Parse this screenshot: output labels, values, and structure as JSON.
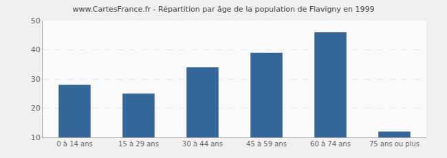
{
  "chart_data": {
    "type": "bar",
    "title": "www.CartesFrance.fr - Répartition par âge de la population de Flavigny en 1999",
    "categories": [
      "0 à 14 ans",
      "15 à 29 ans",
      "30 à 44 ans",
      "45 à 59 ans",
      "60 à 74 ans",
      "75 ans ou plus"
    ],
    "values": [
      28,
      25,
      34,
      39,
      46,
      12
    ],
    "color": "#336699",
    "ylim": [
      10,
      50
    ],
    "yticks": [
      10,
      20,
      30,
      40,
      50
    ],
    "grid": true
  }
}
